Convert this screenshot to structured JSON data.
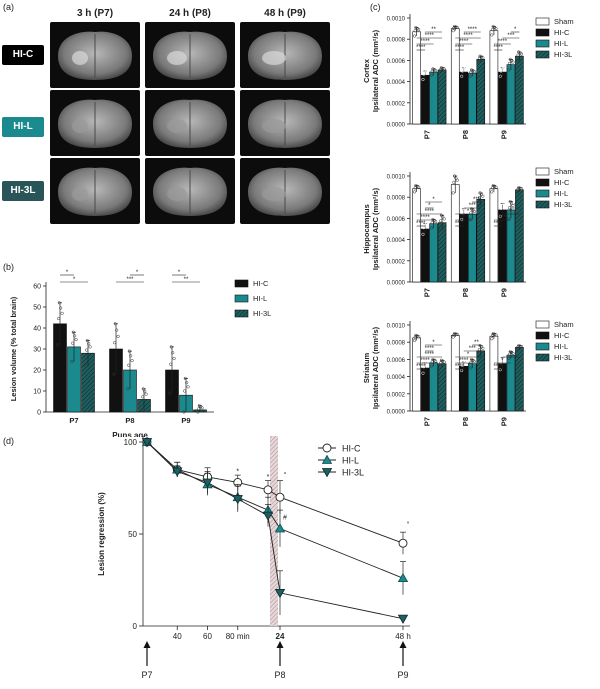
{
  "panel_labels": {
    "a": "(a)",
    "b": "(b)",
    "c": "(c)",
    "d": "(d)"
  },
  "mri_panel": {
    "timepoints": [
      "3 h (P7)",
      "24 h (P8)",
      "48 h (P9)"
    ],
    "rows": [
      {
        "label": "HI-C",
        "color": "#000000"
      },
      {
        "label": "HI-L",
        "color": "#1a8a8e"
      },
      {
        "label": "HI-3L",
        "color": "#2a5558"
      }
    ]
  },
  "colors": {
    "hic": "#111111",
    "hil": "#1b8a8f",
    "hi3l": "#1f5f60",
    "sham": "#ffffff"
  },
  "chart_data": [
    {
      "id": "b",
      "type": "bar",
      "ylabel": "Lesion volume (% total brain)",
      "xlabel": "Pups age",
      "categories": [
        "P7",
        "P8",
        "P9"
      ],
      "ylim": [
        0,
        60
      ],
      "yticks": [
        "0",
        "10",
        "20",
        "30",
        "40",
        "50",
        "60"
      ],
      "legend": [
        "HI-C",
        "HI-L",
        "HI-3L"
      ],
      "legend_position": "right",
      "series": [
        {
          "name": "HI-C",
          "values": [
            42,
            30,
            20
          ],
          "err": [
            10,
            12,
            11
          ]
        },
        {
          "name": "HI-L",
          "values": [
            31,
            20,
            8
          ],
          "err": [
            7,
            9,
            8
          ]
        },
        {
          "name": "HI-3L",
          "values": [
            28,
            6,
            1
          ],
          "err": [
            6,
            5,
            2
          ]
        }
      ],
      "significance": [
        {
          "cat": 0,
          "pair": [
            0,
            2
          ],
          "label": "*"
        },
        {
          "cat": 0,
          "pair": [
            0,
            1
          ],
          "label": "*"
        },
        {
          "cat": 1,
          "pair": [
            0,
            2
          ],
          "label": "***"
        },
        {
          "cat": 1,
          "pair": [
            1,
            2
          ],
          "label": "*"
        },
        {
          "cat": 2,
          "pair": [
            0,
            2
          ],
          "label": "**"
        },
        {
          "cat": 2,
          "pair": [
            0,
            1
          ],
          "label": "*"
        }
      ]
    },
    {
      "id": "c1",
      "type": "bar",
      "ylabel": [
        "Cortex",
        "Ipsilateral ADC (mm²/s)"
      ],
      "xlabel": "",
      "categories": [
        "P7",
        "P8",
        "P9"
      ],
      "ylim": [
        0,
        0.001
      ],
      "yticks": [
        "0.0000",
        "0.0002",
        "0.0004",
        "0.0006",
        "0.0008",
        "0.0010"
      ],
      "legend": [
        "Sham",
        "HI-C",
        "HI-L",
        "HI-3L"
      ],
      "legend_position": "right",
      "series": [
        {
          "name": "Sham",
          "values": [
            0.00087,
            0.0009,
            0.00088
          ],
          "err": [
            4e-05,
            2e-05,
            4e-05
          ]
        },
        {
          "name": "HI-C",
          "values": [
            0.00046,
            0.00049,
            0.00049
          ],
          "err": [
            4e-05,
            4e-05,
            4e-05
          ]
        },
        {
          "name": "HI-L",
          "values": [
            0.00049,
            0.00048,
            0.00056
          ],
          "err": [
            3e-05,
            3e-05,
            5e-05
          ]
        },
        {
          "name": "HI-3L",
          "values": [
            0.00051,
            0.00061,
            0.00064
          ],
          "err": [
            2e-05,
            3e-05,
            4e-05
          ]
        }
      ],
      "significance": [
        {
          "cat": 0,
          "pair": [
            0,
            1
          ],
          "label": "****"
        },
        {
          "cat": 0,
          "pair": [
            0,
            2
          ],
          "label": "****"
        },
        {
          "cat": 0,
          "pair": [
            0,
            3
          ],
          "label": "****"
        },
        {
          "cat": 0,
          "pair": [
            1,
            3
          ],
          "label": "**"
        },
        {
          "cat": 1,
          "pair": [
            0,
            1
          ],
          "label": "****"
        },
        {
          "cat": 1,
          "pair": [
            0,
            2
          ],
          "label": "****"
        },
        {
          "cat": 1,
          "pair": [
            0,
            3
          ],
          "label": "****"
        },
        {
          "cat": 1,
          "pair": [
            1,
            3
          ],
          "label": "****"
        },
        {
          "cat": 2,
          "pair": [
            0,
            1
          ],
          "label": "****"
        },
        {
          "cat": 2,
          "pair": [
            0,
            2
          ],
          "label": "****"
        },
        {
          "cat": 2,
          "pair": [
            1,
            3
          ],
          "label": "***"
        },
        {
          "cat": 2,
          "pair": [
            2,
            3
          ],
          "label": "*"
        }
      ]
    },
    {
      "id": "c2",
      "type": "bar",
      "ylabel": [
        "Hippocampus",
        "Ipsilateral ADC (mm²/s)"
      ],
      "xlabel": "",
      "categories": [
        "P7",
        "P8",
        "P9"
      ],
      "ylim": [
        0,
        0.001
      ],
      "yticks": [
        "0.0000",
        "0.0002",
        "0.0004",
        "0.0006",
        "0.0008",
        "0.0010"
      ],
      "legend": [
        "Sham",
        "HI-C",
        "HI-L",
        "HI-3L"
      ],
      "legend_position": "right",
      "series": [
        {
          "name": "Sham",
          "values": [
            0.00088,
            0.00092,
            0.00088
          ],
          "err": [
            3e-05,
            8e-05,
            3e-05
          ]
        },
        {
          "name": "HI-C",
          "values": [
            0.0005,
            0.00064,
            0.00068
          ],
          "err": [
            5e-05,
            5e-05,
            6e-05
          ]
        },
        {
          "name": "HI-L",
          "values": [
            0.00055,
            0.00064,
            0.00068
          ],
          "err": [
            4e-05,
            5e-05,
            8e-05
          ]
        },
        {
          "name": "HI-3L",
          "values": [
            0.00056,
            0.00078,
            0.00087
          ],
          "err": [
            7e-05,
            6e-05,
            2e-05
          ]
        }
      ],
      "significance": [
        {
          "cat": 0,
          "pair": [
            0,
            1
          ],
          "label": "****"
        },
        {
          "cat": 0,
          "pair": [
            0,
            2
          ],
          "label": "****"
        },
        {
          "cat": 0,
          "pair": [
            0,
            3
          ],
          "label": "****"
        },
        {
          "cat": 0,
          "pair": [
            1,
            2
          ],
          "label": "*"
        },
        {
          "cat": 0,
          "pair": [
            1,
            3
          ],
          "label": "*"
        },
        {
          "cat": 1,
          "pair": [
            0,
            1
          ],
          "label": "****"
        },
        {
          "cat": 1,
          "pair": [
            0,
            2
          ],
          "label": "****"
        },
        {
          "cat": 1,
          "pair": [
            0,
            3
          ],
          "label": "*"
        },
        {
          "cat": 1,
          "pair": [
            1,
            3
          ],
          "label": "***"
        },
        {
          "cat": 1,
          "pair": [
            2,
            3
          ],
          "label": "***"
        },
        {
          "cat": 2,
          "pair": [
            0,
            1
          ],
          "label": "****"
        },
        {
          "cat": 2,
          "pair": [
            0,
            2
          ],
          "label": "***"
        },
        {
          "cat": 2,
          "pair": [
            1,
            3
          ],
          "label": "*"
        },
        {
          "cat": 2,
          "pair": [
            2,
            3
          ],
          "label": "*"
        }
      ]
    },
    {
      "id": "c3",
      "type": "bar",
      "ylabel": [
        "Striatum",
        "Ipsilateral ADC (mm²/s)"
      ],
      "xlabel": "",
      "categories": [
        "P7",
        "P8",
        "P9"
      ],
      "ylim": [
        0,
        0.001
      ],
      "yticks": [
        "0.0000",
        "0.0002",
        "0.0004",
        "0.0006",
        "0.0008",
        "0.0010"
      ],
      "legend": [
        "Sham",
        "HI-C",
        "HI-L",
        "HI-3L"
      ],
      "legend_position": "right",
      "series": [
        {
          "name": "Sham",
          "values": [
            0.00085,
            0.00088,
            0.00087
          ],
          "err": [
            3e-05,
            2e-05,
            3e-05
          ]
        },
        {
          "name": "HI-C",
          "values": [
            0.0005,
            0.00052,
            0.00055
          ],
          "err": [
            6e-05,
            5e-05,
            7e-05
          ]
        },
        {
          "name": "HI-L",
          "values": [
            0.00056,
            0.00055,
            0.00065
          ],
          "err": [
            4e-05,
            5e-05,
            4e-05
          ]
        },
        {
          "name": "HI-3L",
          "values": [
            0.00055,
            0.0007,
            0.00074
          ],
          "err": [
            4e-05,
            6e-05,
            2e-05
          ]
        }
      ],
      "significance": [
        {
          "cat": 0,
          "pair": [
            0,
            1
          ],
          "label": "****"
        },
        {
          "cat": 0,
          "pair": [
            0,
            2
          ],
          "label": "****"
        },
        {
          "cat": 0,
          "pair": [
            0,
            3
          ],
          "label": "****"
        },
        {
          "cat": 0,
          "pair": [
            1,
            2
          ],
          "label": "****"
        },
        {
          "cat": 0,
          "pair": [
            1,
            3
          ],
          "label": "*"
        },
        {
          "cat": 1,
          "pair": [
            0,
            1
          ],
          "label": "****"
        },
        {
          "cat": 1,
          "pair": [
            0,
            2
          ],
          "label": "****"
        },
        {
          "cat": 1,
          "pair": [
            0,
            3
          ],
          "label": "*"
        },
        {
          "cat": 1,
          "pair": [
            1,
            3
          ],
          "label": "***"
        },
        {
          "cat": 1,
          "pair": [
            2,
            3
          ],
          "label": "**"
        },
        {
          "cat": 2,
          "pair": [
            0,
            1
          ],
          "label": "****"
        },
        {
          "cat": 2,
          "pair": [
            0,
            2
          ],
          "label": "*"
        },
        {
          "cat": 2,
          "pair": [
            1,
            3
          ],
          "label": "*"
        }
      ]
    },
    {
      "id": "d",
      "type": "line",
      "ylabel": "Lesion regression (%)",
      "ylim": [
        0,
        100
      ],
      "yticks": [
        "0",
        "50",
        "100"
      ],
      "xticks_left": [
        "40",
        "60",
        "80 min"
      ],
      "xticks_right": [
        "24",
        "48 h"
      ],
      "arrows": [
        "P7",
        "P8",
        "P9"
      ],
      "legend": [
        "HI-C",
        "HI-L",
        "HI-3L"
      ],
      "legend_position": "top-right",
      "x_left_min": [
        20,
        40,
        60,
        80,
        100
      ],
      "x_right_h": [
        24,
        48
      ],
      "series": [
        {
          "name": "HI-C",
          "marker": "circle",
          "left": [
            100,
            85,
            81,
            78,
            74
          ],
          "left_err": [
            0,
            4,
            5,
            4,
            5
          ],
          "right": [
            70,
            45
          ],
          "right_err": [
            9,
            6
          ]
        },
        {
          "name": "HI-L",
          "marker": "triangle-up",
          "left": [
            100,
            85,
            77,
            70,
            63
          ],
          "left_err": [
            0,
            4,
            6,
            7,
            7
          ],
          "right": [
            53,
            26
          ],
          "right_err": [
            10,
            9
          ]
        },
        {
          "name": "HI-3L",
          "marker": "triangle-down",
          "left": [
            100,
            84,
            78,
            69,
            60
          ],
          "left_err": [
            0,
            3,
            6,
            7,
            6
          ],
          "right": [
            18,
            4
          ],
          "right_err": [
            12,
            1
          ]
        }
      ],
      "annotations": [
        {
          "at": "left",
          "index": 3,
          "value": 83,
          "label": "*"
        },
        {
          "at": "left",
          "index": 4,
          "value": 80,
          "label": "*"
        },
        {
          "at": "right",
          "index": 0,
          "value": 81,
          "label": "°"
        },
        {
          "at": "right",
          "index": 0,
          "value": 58,
          "label": "#"
        },
        {
          "at": "right",
          "index": 1,
          "value": 54,
          "label": "°"
        }
      ]
    }
  ]
}
